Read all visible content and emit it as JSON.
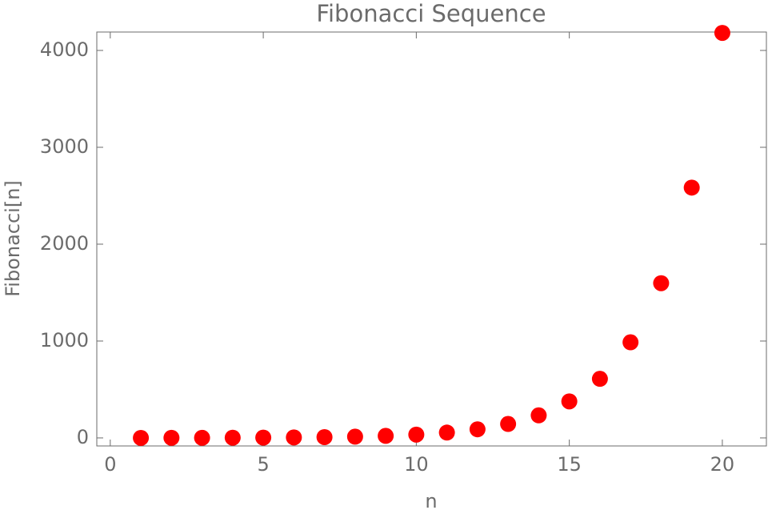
{
  "chart_data": {
    "type": "scatter",
    "title": "Fibonacci Sequence",
    "x_label": "n",
    "y_label": "Fibonacci[n]",
    "x": [
      1,
      2,
      3,
      4,
      5,
      6,
      7,
      8,
      9,
      10,
      11,
      12,
      13,
      14,
      15,
      16,
      17,
      18,
      19,
      20
    ],
    "values": [
      0,
      1,
      1,
      2,
      3,
      5,
      8,
      13,
      21,
      34,
      55,
      89,
      144,
      233,
      377,
      610,
      987,
      1597,
      2584,
      4181
    ],
    "color": "#ff0000",
    "xlim": [
      -0.44,
      21.44
    ],
    "ylim": [
      -83,
      4190
    ],
    "xticks": [
      0,
      5,
      10,
      15,
      20
    ],
    "yticks": [
      0,
      1000,
      2000,
      3000,
      4000
    ]
  }
}
